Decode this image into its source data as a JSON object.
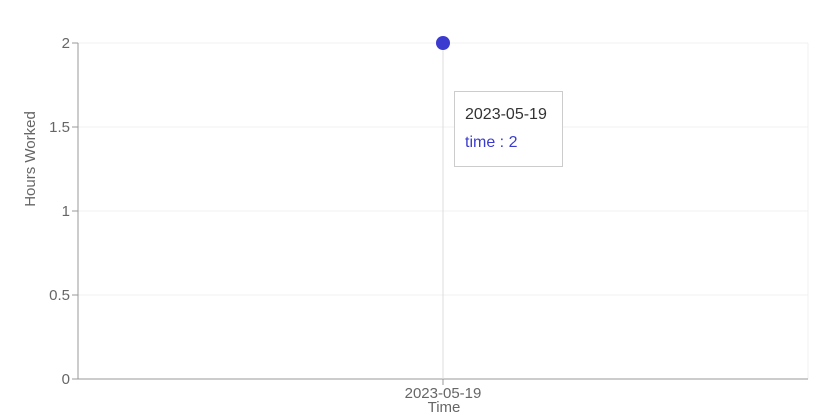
{
  "chart_data": {
    "type": "line",
    "x": [
      "2023-05-19"
    ],
    "series": [
      {
        "name": "time",
        "values": [
          2
        ],
        "color": "#3b3bd0"
      }
    ],
    "xlabel": "Time",
    "ylabel": "Hours Worked",
    "ylim": [
      0,
      2
    ],
    "yticks": [
      0,
      0.5,
      1,
      1.5,
      2
    ],
    "ytick_labels": [
      "0",
      "0.5",
      "1",
      "1.5",
      "2"
    ],
    "grid": true,
    "tooltip": {
      "label": "2023-05-19",
      "item": "time : 2"
    }
  }
}
